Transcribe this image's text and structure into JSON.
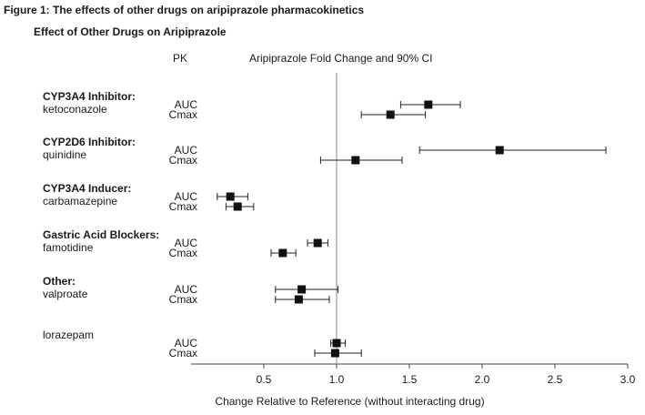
{
  "figure_title": "Figure 1:   The effects of other drugs on aripiprazole pharmacokinetics",
  "chart_data": {
    "type": "forest",
    "title": "Effect of Other Drugs on Aripiprazole",
    "col_pk": "PK",
    "col_ci": "Aripiprazole Fold Change and 90% CI",
    "xlabel": "Change Relative to Reference (without interacting drug)",
    "xlim": [
      0.0,
      3.0
    ],
    "xticks": [
      "0.5",
      "1.0",
      "1.5",
      "2.0",
      "2.5",
      "3.0"
    ],
    "reference_line": 1.0,
    "groups": [
      {
        "name": "CYP3A4 Inhibitor:",
        "drug": "ketoconazole",
        "rows": [
          {
            "pk": "AUC",
            "est": 1.63,
            "lo": 1.44,
            "hi": 1.85
          },
          {
            "pk": "Cmax",
            "est": 1.37,
            "lo": 1.17,
            "hi": 1.61
          }
        ]
      },
      {
        "name": "CYP2D6 Inhibitor:",
        "drug": "quinidine",
        "rows": [
          {
            "pk": "AUC",
            "est": 2.12,
            "lo": 1.57,
            "hi": 2.85
          },
          {
            "pk": "Cmax",
            "est": 1.13,
            "lo": 0.89,
            "hi": 1.45
          }
        ]
      },
      {
        "name": "CYP3A4 Inducer:",
        "drug": "carbamazepine",
        "rows": [
          {
            "pk": "AUC",
            "est": 0.27,
            "lo": 0.18,
            "hi": 0.39
          },
          {
            "pk": "Cmax",
            "est": 0.32,
            "lo": 0.24,
            "hi": 0.43
          }
        ]
      },
      {
        "name": "Gastric Acid Blockers:",
        "drug": "famotidine",
        "rows": [
          {
            "pk": "AUC",
            "est": 0.87,
            "lo": 0.8,
            "hi": 0.94
          },
          {
            "pk": "Cmax",
            "est": 0.63,
            "lo": 0.55,
            "hi": 0.72
          }
        ]
      },
      {
        "name": "Other:",
        "drug": "valproate",
        "rows": [
          {
            "pk": "AUC",
            "est": 0.76,
            "lo": 0.58,
            "hi": 1.01
          },
          {
            "pk": "Cmax",
            "est": 0.74,
            "lo": 0.58,
            "hi": 0.95
          }
        ]
      },
      {
        "name": "",
        "drug": "lorazepam",
        "rows": [
          {
            "pk": "AUC",
            "est": 1.0,
            "lo": 0.96,
            "hi": 1.06
          },
          {
            "pk": "Cmax",
            "est": 0.99,
            "lo": 0.85,
            "hi": 1.17
          }
        ]
      }
    ]
  }
}
